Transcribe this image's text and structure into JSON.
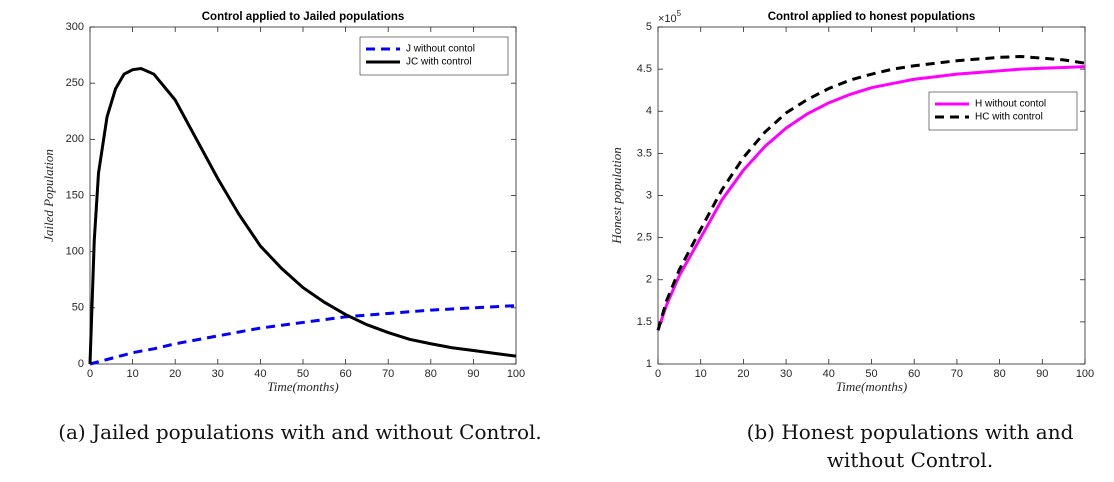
{
  "chart_data": [
    {
      "type": "line",
      "title": "Control applied to Jailed populations",
      "xlabel": "Time(months)",
      "ylabel": "Jailed Population",
      "caption": "(a) Jailed populations with and without Control.",
      "x": [
        0,
        1,
        2,
        4,
        6,
        8,
        10,
        12,
        15,
        20,
        25,
        30,
        35,
        40,
        45,
        50,
        55,
        60,
        65,
        70,
        75,
        80,
        85,
        90,
        95,
        100
      ],
      "series": [
        {
          "name": "J without contol",
          "color": "#0000ff",
          "line_style": "dashed",
          "values": [
            0,
            1,
            2,
            4,
            6,
            8,
            10,
            11.5,
            13.5,
            18,
            21.5,
            25,
            28.5,
            32,
            34.5,
            37,
            39.5,
            42,
            43.5,
            45,
            46.5,
            48,
            49,
            50,
            51,
            52
          ]
        },
        {
          "name": "JC with control",
          "color": "#000000",
          "line_style": "solid",
          "values": [
            0,
            110,
            170,
            220,
            245,
            258,
            262,
            263,
            258,
            235,
            200,
            165,
            133,
            105,
            85,
            68,
            55,
            44,
            35,
            28,
            22,
            18,
            14.5,
            12,
            9.5,
            7
          ]
        }
      ],
      "xlim": [
        0,
        100
      ],
      "xticks": [
        0,
        10,
        20,
        30,
        40,
        50,
        60,
        70,
        80,
        90,
        100
      ],
      "ylim": [
        0,
        300
      ],
      "yticks": [
        0,
        50,
        100,
        150,
        200,
        250,
        300
      ],
      "legend": "northeast"
    },
    {
      "type": "line",
      "title": "Control applied to honest populations",
      "xlabel": "Time(months)",
      "ylabel": "Honest population",
      "caption": "(b) Honest populations with and without Control.",
      "y_multiplier": {
        "base": "×10",
        "power": "5"
      },
      "x": [
        0,
        2,
        5,
        10,
        15,
        20,
        25,
        30,
        35,
        40,
        45,
        50,
        55,
        60,
        65,
        70,
        75,
        80,
        85,
        90,
        95,
        100
      ],
      "series": [
        {
          "name": "H without contol",
          "color": "#ff00ff",
          "line_style": "solid",
          "values": [
            1.4,
            1.7,
            2.05,
            2.5,
            2.95,
            3.3,
            3.58,
            3.8,
            3.97,
            4.1,
            4.2,
            4.28,
            4.33,
            4.38,
            4.41,
            4.44,
            4.46,
            4.48,
            4.5,
            4.51,
            4.52,
            4.53
          ]
        },
        {
          "name": "HC with control",
          "color": "#000000",
          "line_style": "dashed",
          "values": [
            1.4,
            1.75,
            2.12,
            2.6,
            3.07,
            3.45,
            3.75,
            3.98,
            4.14,
            4.27,
            4.37,
            4.44,
            4.5,
            4.54,
            4.57,
            4.6,
            4.62,
            4.64,
            4.65,
            4.63,
            4.61,
            4.57
          ]
        }
      ],
      "xlim": [
        0,
        100
      ],
      "xticks": [
        0,
        10,
        20,
        30,
        40,
        50,
        60,
        70,
        80,
        90,
        100
      ],
      "ylim": [
        1,
        5
      ],
      "yticks": [
        1,
        1.5,
        2,
        2.5,
        3,
        3.5,
        4,
        4.5,
        5
      ],
      "legend": "east"
    }
  ]
}
